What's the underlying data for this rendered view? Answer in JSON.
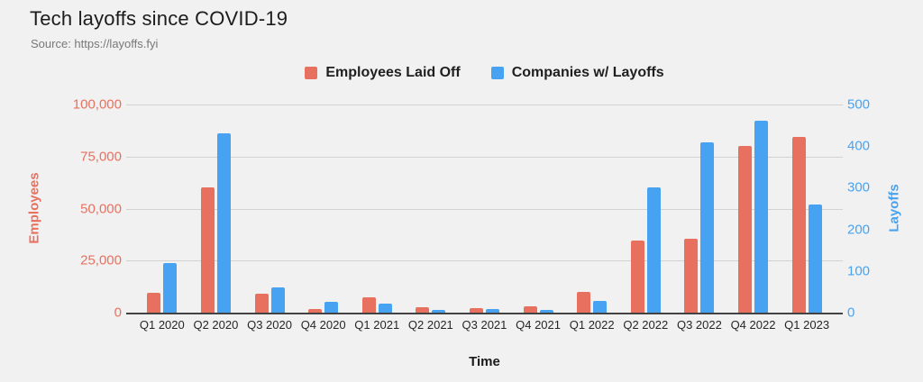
{
  "title": "Tech layoffs since COVID-19",
  "source": "Source: https://layoffs.fyi",
  "colors": {
    "employees": "#e8705e",
    "companies": "#47a3f2",
    "background": "#f1f1f1",
    "gridline": "#d2d2d2",
    "baseline": "#424242"
  },
  "legend": {
    "items": [
      {
        "label": "Employees Laid Off",
        "color": "#e8705e"
      },
      {
        "label": "Companies w/ Layoffs",
        "color": "#47a3f2"
      }
    ]
  },
  "axes": {
    "left": {
      "title": "Employees",
      "color": "#e8705e",
      "ticks": [
        "100,000",
        "75,000",
        "50,000",
        "25,000",
        "0"
      ],
      "max": 100000
    },
    "right": {
      "title": "Layoffs",
      "color": "#47a3f2",
      "ticks": [
        "500",
        "400",
        "300",
        "200",
        "100",
        "0"
      ],
      "max": 500
    },
    "x": {
      "title": "Time"
    }
  },
  "chart_data": {
    "type": "bar",
    "title": "Tech layoffs since COVID-19",
    "xlabel": "Time",
    "ylabel_left": "Employees",
    "ylabel_right": "Layoffs",
    "ylim_left": [
      0,
      100000
    ],
    "ylim_right": [
      0,
      500
    ],
    "grid": true,
    "legend_position": "top",
    "categories": [
      "Q1 2020",
      "Q2 2020",
      "Q3 2020",
      "Q4 2020",
      "Q1 2021",
      "Q2 2021",
      "Q3 2021",
      "Q4 2021",
      "Q1 2022",
      "Q2 2022",
      "Q3 2022",
      "Q4 2022",
      "Q1 2023"
    ],
    "series": [
      {
        "name": "Employees Laid Off",
        "axis": "left",
        "color": "#e8705e",
        "values": [
          9500,
          60000,
          9000,
          1700,
          7300,
          2600,
          2200,
          3200,
          10000,
          34800,
          35500,
          80000,
          84500
        ]
      },
      {
        "name": "Companies w/ Layoffs",
        "axis": "right",
        "color": "#47a3f2",
        "values": [
          120,
          430,
          60,
          25,
          21,
          6,
          9,
          7,
          28,
          300,
          410,
          460,
          260
        ]
      }
    ]
  }
}
